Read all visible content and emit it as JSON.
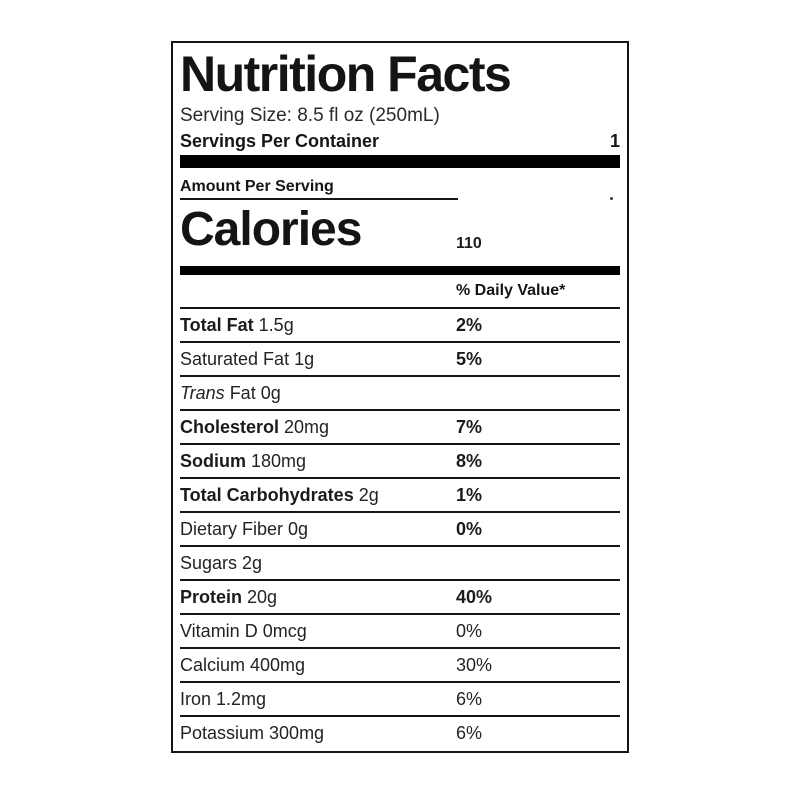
{
  "label": {
    "title": "Nutrition Facts",
    "serving_size": "Serving Size: 8.5 fl oz (250mL)",
    "servings_per_container_label": "Servings Per Container",
    "servings_per_container_value": "1",
    "amount_per_serving": "Amount Per Serving",
    "calories_label": "Calories",
    "calories_value": "110",
    "daily_value_header": "% Daily Value*",
    "colors": {
      "text": "#1a1a1a",
      "bars": "#000000",
      "background": "#ffffff"
    },
    "rows": [
      {
        "bold": "Total Fat",
        "rest": " 1.5g",
        "pct": "2%"
      },
      {
        "rest": "Saturated Fat 1g",
        "pct": "5%"
      },
      {
        "italic": "Trans",
        "rest": " Fat 0g",
        "pct": ""
      },
      {
        "bold": "Cholesterol",
        "rest": " 20mg",
        "pct": "7%"
      },
      {
        "bold": "Sodium",
        "rest": " 180mg",
        "pct": "8%"
      },
      {
        "bold": "Total Carbohydrates",
        "rest": " 2g",
        "pct": "1%"
      },
      {
        "rest": "Dietary Fiber 0g",
        "pct": "0%"
      },
      {
        "rest": "Sugars 2g",
        "pct": ""
      },
      {
        "bold": "Protein",
        "rest": " 20g",
        "pct": "40%"
      },
      {
        "rest": "Vitamin D 0mcg",
        "pct": "0%"
      },
      {
        "rest": "Calcium 400mg",
        "pct": "30%"
      },
      {
        "rest": "Iron 1.2mg",
        "pct": "6%"
      },
      {
        "rest": "Potassium 300mg",
        "pct": "6%"
      }
    ]
  }
}
